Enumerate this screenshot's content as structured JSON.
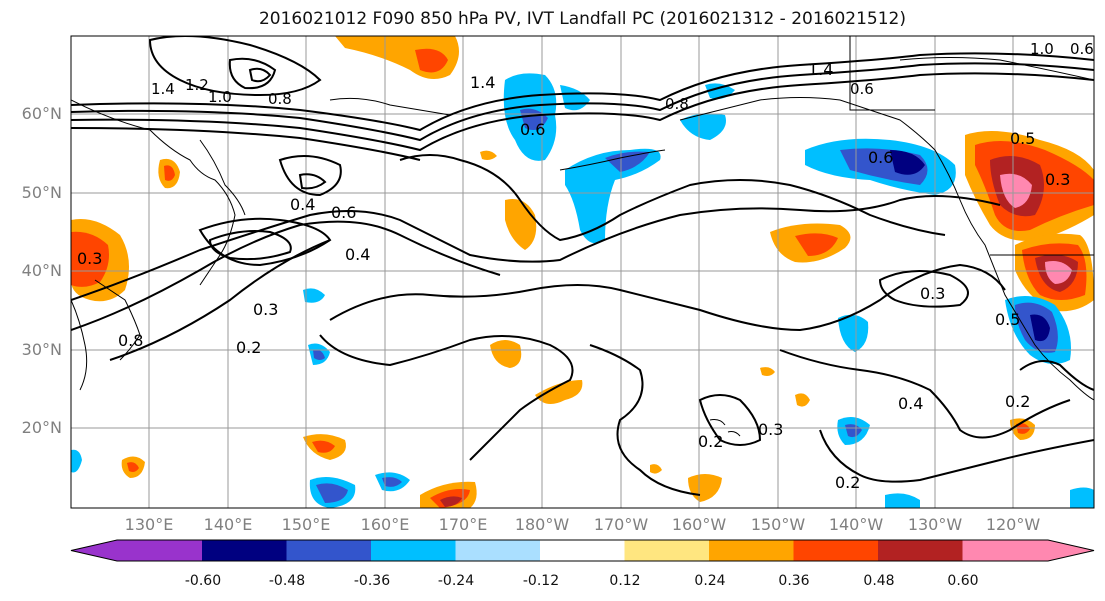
{
  "title": "2016021012 F090 850 hPa PV, IVT Landfall PC (2016021312 - 2016021512)",
  "map": {
    "lat_labels": [
      "60°N",
      "50°N",
      "40°N",
      "30°N",
      "20°N"
    ],
    "lon_labels": [
      "130°E",
      "140°E",
      "150°E",
      "160°E",
      "170°E",
      "180°W",
      "170°W",
      "160°W",
      "150°W",
      "140°W",
      "130°W",
      "120°W"
    ],
    "contour_labels": [
      "1.4",
      "1.2",
      "1.0",
      "0.8",
      "1.4",
      "0.6",
      "0.4",
      "0.6",
      "0.4",
      "0.3",
      "0.3",
      "0.8",
      "0.2",
      "0.3",
      "0.4",
      "0.2",
      "0.3",
      "0.2",
      "0.2",
      "0.6",
      "0.5",
      "0.3",
      "0.5",
      "0.8",
      "0.6",
      "1.0",
      "0.6",
      "1.4"
    ],
    "land_color": "#000000",
    "grid_color": "#999999"
  },
  "colorbar": {
    "colors": [
      "#9933cc",
      "#000080",
      "#3355cc",
      "#00bfff",
      "#aadfff",
      "#ffffff",
      "#ffe680",
      "#ffa500",
      "#ff4500",
      "#b22222",
      "#ff88b0"
    ],
    "tick_labels": [
      "-0.60",
      "-0.48",
      "-0.36",
      "-0.24",
      "-0.12",
      "0.12",
      "0.24",
      "0.36",
      "0.48",
      "0.60"
    ]
  }
}
